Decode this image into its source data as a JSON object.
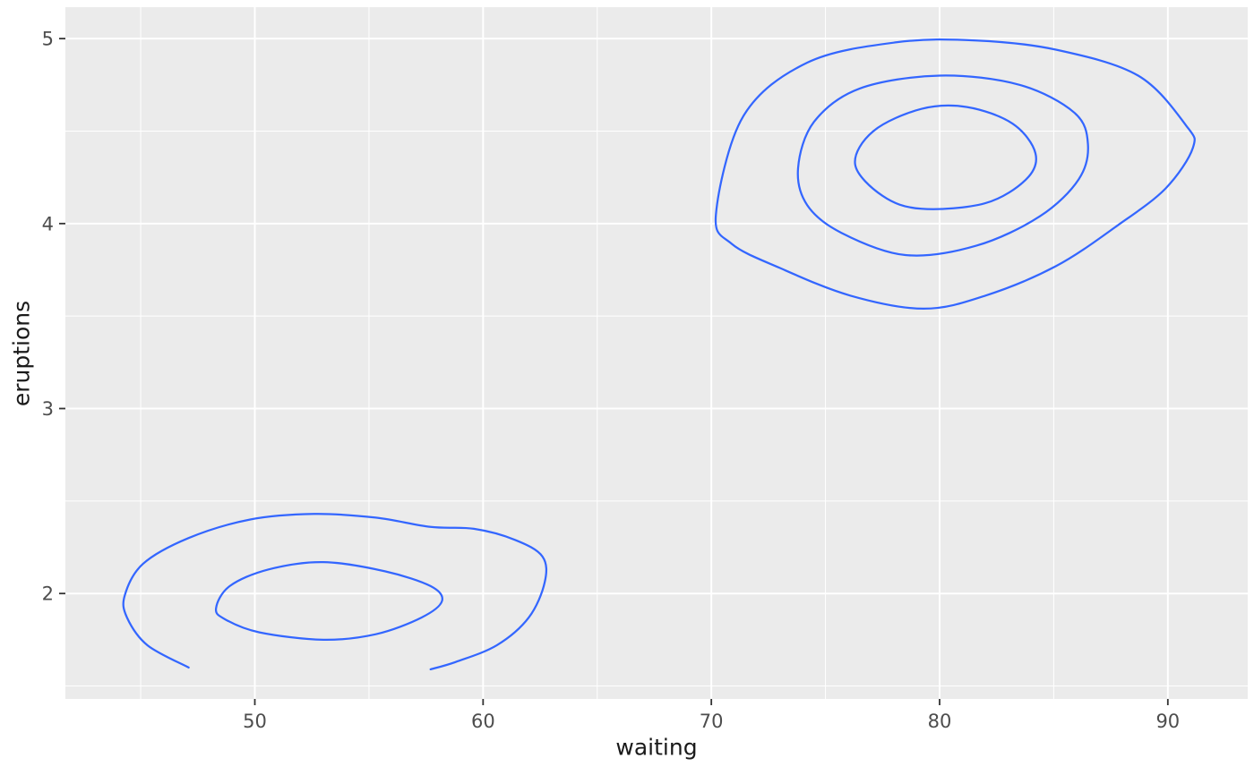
{
  "chart_data": {
    "type": "contour",
    "title": "",
    "xlabel": "waiting",
    "ylabel": "eruptions",
    "x_ticks": [
      50,
      60,
      70,
      80,
      90
    ],
    "x_minor_ticks": [
      45,
      55,
      65,
      75,
      85
    ],
    "y_ticks": [
      2,
      3,
      4,
      5
    ],
    "y_minor_ticks": [
      1.5,
      2.5,
      3.5,
      4.5
    ],
    "xlim": [
      41.7,
      93.5
    ],
    "ylim": [
      1.43,
      5.17
    ],
    "grid": true,
    "legend": "none",
    "style": {
      "panel_bg": "#EBEBEB",
      "grid_color": "#FFFFFF",
      "line_color": "#3366FF",
      "tick_mark_color": "#333333",
      "tick_label_color": "#4D4D4D",
      "axis_title_color": "#1A1A1A"
    },
    "description": "2D kernel density contour plot of eruptions vs waiting (Old Faithful), two density clusters",
    "contours": [
      {
        "id": "upper-outer",
        "cluster": "upper-right",
        "closed": true,
        "points": [
          [
            70.2,
            4.05
          ],
          [
            71.4,
            4.58
          ],
          [
            74.2,
            4.87
          ],
          [
            78.1,
            4.98
          ],
          [
            81.6,
            4.99
          ],
          [
            85.1,
            4.94
          ],
          [
            88.7,
            4.8
          ],
          [
            90.8,
            4.53
          ],
          [
            91.1,
            4.41
          ],
          [
            89.9,
            4.19
          ],
          [
            87.8,
            3.99
          ],
          [
            85.1,
            3.77
          ],
          [
            82.0,
            3.61
          ],
          [
            79.3,
            3.54
          ],
          [
            76.1,
            3.61
          ],
          [
            73.0,
            3.76
          ],
          [
            70.9,
            3.89
          ]
        ]
      },
      {
        "id": "upper-middle",
        "cluster": "upper-right",
        "closed": true,
        "points": [
          [
            73.8,
            4.3
          ],
          [
            74.5,
            4.55
          ],
          [
            76.5,
            4.73
          ],
          [
            80.0,
            4.8
          ],
          [
            83.5,
            4.75
          ],
          [
            85.9,
            4.6
          ],
          [
            86.5,
            4.43
          ],
          [
            86.1,
            4.24
          ],
          [
            84.4,
            4.04
          ],
          [
            81.6,
            3.88
          ],
          [
            78.5,
            3.83
          ],
          [
            75.7,
            3.95
          ],
          [
            74.2,
            4.1
          ]
        ]
      },
      {
        "id": "upper-inner",
        "cluster": "upper-right",
        "closed": true,
        "points": [
          [
            76.3,
            4.32
          ],
          [
            77.1,
            4.5
          ],
          [
            79.2,
            4.62
          ],
          [
            81.2,
            4.63
          ],
          [
            83.2,
            4.54
          ],
          [
            84.2,
            4.38
          ],
          [
            83.8,
            4.24
          ],
          [
            82.0,
            4.11
          ],
          [
            79.2,
            4.08
          ],
          [
            77.5,
            4.15
          ]
        ]
      },
      {
        "id": "lower-outer",
        "cluster": "lower-left",
        "closed": false,
        "points": [
          [
            47.1,
            1.6
          ],
          [
            45.3,
            1.72
          ],
          [
            44.4,
            1.87
          ],
          [
            44.3,
            1.99
          ],
          [
            45.1,
            2.16
          ],
          [
            47.1,
            2.3
          ],
          [
            49.8,
            2.4
          ],
          [
            52.6,
            2.43
          ],
          [
            55.3,
            2.41
          ],
          [
            57.7,
            2.36
          ],
          [
            59.6,
            2.35
          ],
          [
            61.4,
            2.29
          ],
          [
            62.6,
            2.2
          ],
          [
            62.7,
            2.06
          ],
          [
            62.0,
            1.87
          ],
          [
            60.6,
            1.72
          ],
          [
            58.8,
            1.63
          ],
          [
            57.7,
            1.59
          ]
        ]
      },
      {
        "id": "lower-inner",
        "cluster": "lower-left",
        "closed": true,
        "points": [
          [
            48.3,
            1.92
          ],
          [
            48.9,
            2.04
          ],
          [
            50.6,
            2.13
          ],
          [
            53.0,
            2.17
          ],
          [
            55.7,
            2.12
          ],
          [
            57.7,
            2.04
          ],
          [
            58.2,
            1.96
          ],
          [
            57.3,
            1.87
          ],
          [
            55.3,
            1.78
          ],
          [
            53.0,
            1.75
          ],
          [
            50.2,
            1.79
          ],
          [
            48.7,
            1.86
          ]
        ]
      }
    ]
  }
}
